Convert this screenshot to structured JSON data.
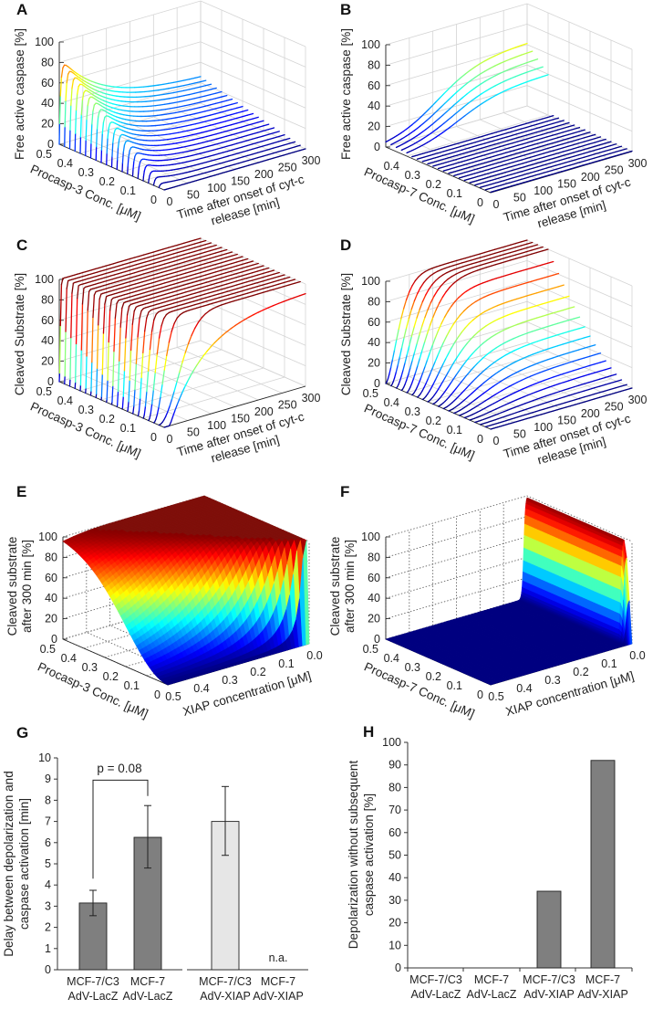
{
  "colors": {
    "bar_dark": "#7f7f7f",
    "bar_light": "#e6e6e6",
    "surface_top": "#7f0f0a",
    "grid": "#d0d0d0"
  },
  "panels": {
    "A": {
      "label": "A",
      "zlabel": "Free active caspase [%]",
      "clabel": "Procasp-3 Conc. [μM]",
      "tlabel1": "Time after onset of cyt-c",
      "tlabel2": "release [min]"
    },
    "B": {
      "label": "B",
      "zlabel": "Free active caspase [%]",
      "clabel": "Procasp-7 Conc. [μM]",
      "tlabel1": "Time after onset of cyt-c",
      "tlabel2": "release [min]"
    },
    "C": {
      "label": "C",
      "zlabel": "Cleaved Substrate [%]",
      "clabel": "Procasp-3 Conc. [μM]",
      "tlabel1": "Time after onset of cyt-c",
      "tlabel2": "release [min]"
    },
    "D": {
      "label": "D",
      "zlabel": "Cleaved Substrate [%]",
      "clabel": "Procasp-7 Conc. [μM]",
      "tlabel1": "Time after onset of cyt-c",
      "tlabel2": "release [min]"
    },
    "E": {
      "label": "E",
      "zlabel1": "Cleaved substrate",
      "zlabel2": "after 300 min [%]",
      "clabel": "Procasp-3 Conc. [μM]",
      "tlabel1": "XIAP concentration [μM]"
    },
    "F": {
      "label": "F",
      "zlabel1": "Cleaved substrate",
      "zlabel2": "after 300 min [%]",
      "clabel": "Procasp-7 Conc. [μM]",
      "tlabel1": "XIAP concentration [μM]"
    },
    "G": {
      "label": "G",
      "ylabel1": "Delay between depolarization and",
      "ylabel2": "caspase activation [min]",
      "pvalue": "p = 0.08",
      "na": "n.a."
    },
    "H": {
      "label": "H",
      "ylabel1": "Depolarization without subsequent",
      "ylabel2": "caspase activation [%]"
    }
  },
  "chart_data": [
    {
      "panel": "A",
      "type": "line3d",
      "zlabel": "Free active caspase [%]",
      "xlabel": "Procasp-3 Conc. [μM]",
      "ylabel": "Time after onset of cyt-c release [min]",
      "x_ticks": [
        "0.5",
        "0.4",
        "0.3",
        "0.2",
        "0.1",
        "0"
      ],
      "y_ticks": [
        "0",
        "50",
        "100",
        "150",
        "200",
        "250",
        "300"
      ],
      "z_ticks": [
        "0",
        "20",
        "40",
        "60",
        "80",
        "100"
      ],
      "xlim": [
        0,
        0.5
      ],
      "ylim": [
        0,
        300
      ],
      "zlim": [
        0,
        100
      ],
      "grid": true
    },
    {
      "panel": "B",
      "type": "line3d",
      "zlabel": "Free active caspase [%]",
      "xlabel": "Procasp-7 Conc. [μM]",
      "ylabel": "Time after onset of cyt-c release [min]",
      "x_ticks": [
        "0.4",
        "0.3",
        "0.2",
        "0.1",
        "0"
      ],
      "y_ticks": [
        "0",
        "50",
        "100",
        "150",
        "200",
        "250",
        "300"
      ],
      "z_ticks": [
        "0",
        "20",
        "40",
        "60",
        "80",
        "100"
      ],
      "xlim": [
        0,
        0.5
      ],
      "ylim": [
        0,
        300
      ],
      "zlim": [
        0,
        100
      ],
      "grid": true
    },
    {
      "panel": "C",
      "type": "line3d",
      "zlabel": "Cleaved Substrate [%]",
      "xlabel": "Procasp-3 Conc. [μM]",
      "ylabel": "Time after onset of cyt-c release [min]",
      "x_ticks": [
        "0.5",
        "0.4",
        "0.3",
        "0.2",
        "0.1",
        "0"
      ],
      "y_ticks": [
        "0",
        "50",
        "100",
        "150",
        "200",
        "250",
        "300"
      ],
      "z_ticks": [
        "0",
        "20",
        "40",
        "60",
        "80",
        "100"
      ],
      "xlim": [
        0,
        0.5
      ],
      "ylim": [
        0,
        300
      ],
      "zlim": [
        0,
        100
      ],
      "grid": true
    },
    {
      "panel": "D",
      "type": "line3d",
      "zlabel": "Cleaved Substrate [%]",
      "xlabel": "Procasp-7 Conc. [μM]",
      "ylabel": "Time after onset of cyt-c release [min]",
      "x_ticks": [
        "0.5",
        "0.4",
        "0.3",
        "0.2",
        "0.1",
        "0"
      ],
      "y_ticks": [
        "0",
        "50",
        "100",
        "150",
        "200",
        "250",
        "300"
      ],
      "z_ticks": [
        "0",
        "20",
        "40",
        "60",
        "80",
        "100"
      ],
      "xlim": [
        0,
        0.5
      ],
      "ylim": [
        0,
        300
      ],
      "zlim": [
        0,
        100
      ],
      "grid": true
    },
    {
      "panel": "E",
      "type": "surface",
      "zlabel": "Cleaved substrate after 300 min [%]",
      "xlabel": "Procasp-3 Conc. [μM]",
      "ylabel": "XIAP concentration [μM]",
      "x_ticks": [
        "0.5",
        "0.4",
        "0.3",
        "0.2",
        "0.1",
        "0"
      ],
      "y_ticks": [
        "0.5",
        "0.4",
        "0.3",
        "0.2",
        "0.1",
        "0.0"
      ],
      "z_ticks": [
        "0",
        "20",
        "40",
        "60",
        "80",
        "100"
      ],
      "xlim": [
        0,
        0.5
      ],
      "ylim": [
        0,
        0.5
      ],
      "zlim": [
        0,
        100
      ],
      "grid": true
    },
    {
      "panel": "F",
      "type": "surface",
      "zlabel": "Cleaved substrate after 300 min [%]",
      "xlabel": "Procasp-7 Conc. [μM]",
      "ylabel": "XIAP concentration [μM]",
      "x_ticks": [
        "0.5",
        "0.4",
        "0.3",
        "0.2",
        "0.1",
        "0"
      ],
      "y_ticks": [
        "0.5",
        "0.4",
        "0.3",
        "0.2",
        "0.1",
        "0.0"
      ],
      "z_ticks": [
        "0",
        "20",
        "40",
        "60",
        "80",
        "100"
      ],
      "xlim": [
        0,
        0.5
      ],
      "ylim": [
        0,
        0.5
      ],
      "zlim": [
        0,
        100
      ],
      "grid": true
    },
    {
      "panel": "G",
      "type": "bar",
      "ylabel": "Delay between depolarization and caspase activation [min]",
      "categories": [
        [
          "MCF-7/C3",
          "AdV-LacZ"
        ],
        [
          "MCF-7",
          "AdV-LacZ"
        ],
        [
          "MCF-7/C3",
          "AdV-XIAP"
        ],
        [
          "MCF-7",
          "AdV-XIAP"
        ]
      ],
      "values": [
        3.15,
        6.25,
        7.0,
        null
      ],
      "err_low": [
        2.55,
        4.8,
        5.4,
        null
      ],
      "err_high": [
        3.75,
        7.75,
        8.65,
        null
      ],
      "bar_color": [
        "dark",
        "dark",
        "light",
        null
      ],
      "ylim": [
        0,
        10
      ],
      "y_ticks": [
        "0",
        "1",
        "2",
        "3",
        "4",
        "5",
        "6",
        "7",
        "8",
        "9",
        "10"
      ],
      "annotations": [
        "p = 0.08",
        "n.a."
      ]
    },
    {
      "panel": "H",
      "type": "bar",
      "ylabel": "Depolarization without subsequent caspase activation [%]",
      "categories": [
        [
          "MCF-7/C3",
          "AdV-LacZ"
        ],
        [
          "MCF-7",
          "AdV-LacZ"
        ],
        [
          "MCF-7/C3",
          "AdV-XIAP"
        ],
        [
          "MCF-7",
          "AdV-XIAP"
        ]
      ],
      "values": [
        0,
        0,
        34,
        92
      ],
      "ylim": [
        0,
        100
      ],
      "y_ticks": [
        "0",
        "10",
        "20",
        "30",
        "40",
        "50",
        "60",
        "70",
        "80",
        "90",
        "100"
      ]
    }
  ]
}
